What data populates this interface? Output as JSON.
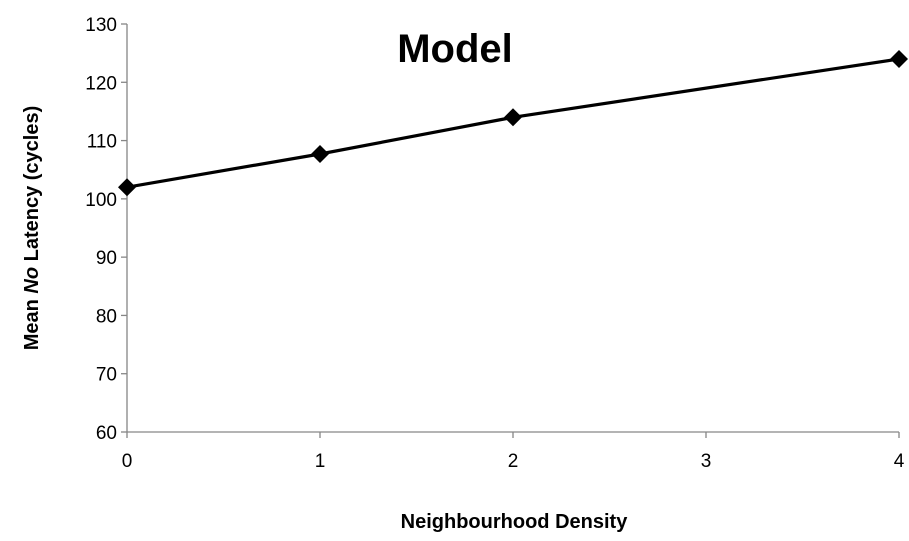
{
  "chart_data": {
    "type": "line",
    "title": "Model",
    "xlabel": "Neighbourhood Density",
    "ylabel_parts": [
      "Mean ",
      "No",
      " Latency (cycles)"
    ],
    "x_ticks": [
      0,
      1,
      2,
      3,
      4
    ],
    "y_ticks": [
      60,
      70,
      80,
      90,
      100,
      110,
      120,
      130
    ],
    "xlim": [
      0,
      4
    ],
    "ylim": [
      60,
      130
    ],
    "grid": false,
    "series": [
      {
        "x": [
          0,
          1,
          2,
          4
        ],
        "y": [
          102,
          107.7,
          114,
          124
        ],
        "color": "#000000",
        "marker": "diamond"
      }
    ]
  }
}
